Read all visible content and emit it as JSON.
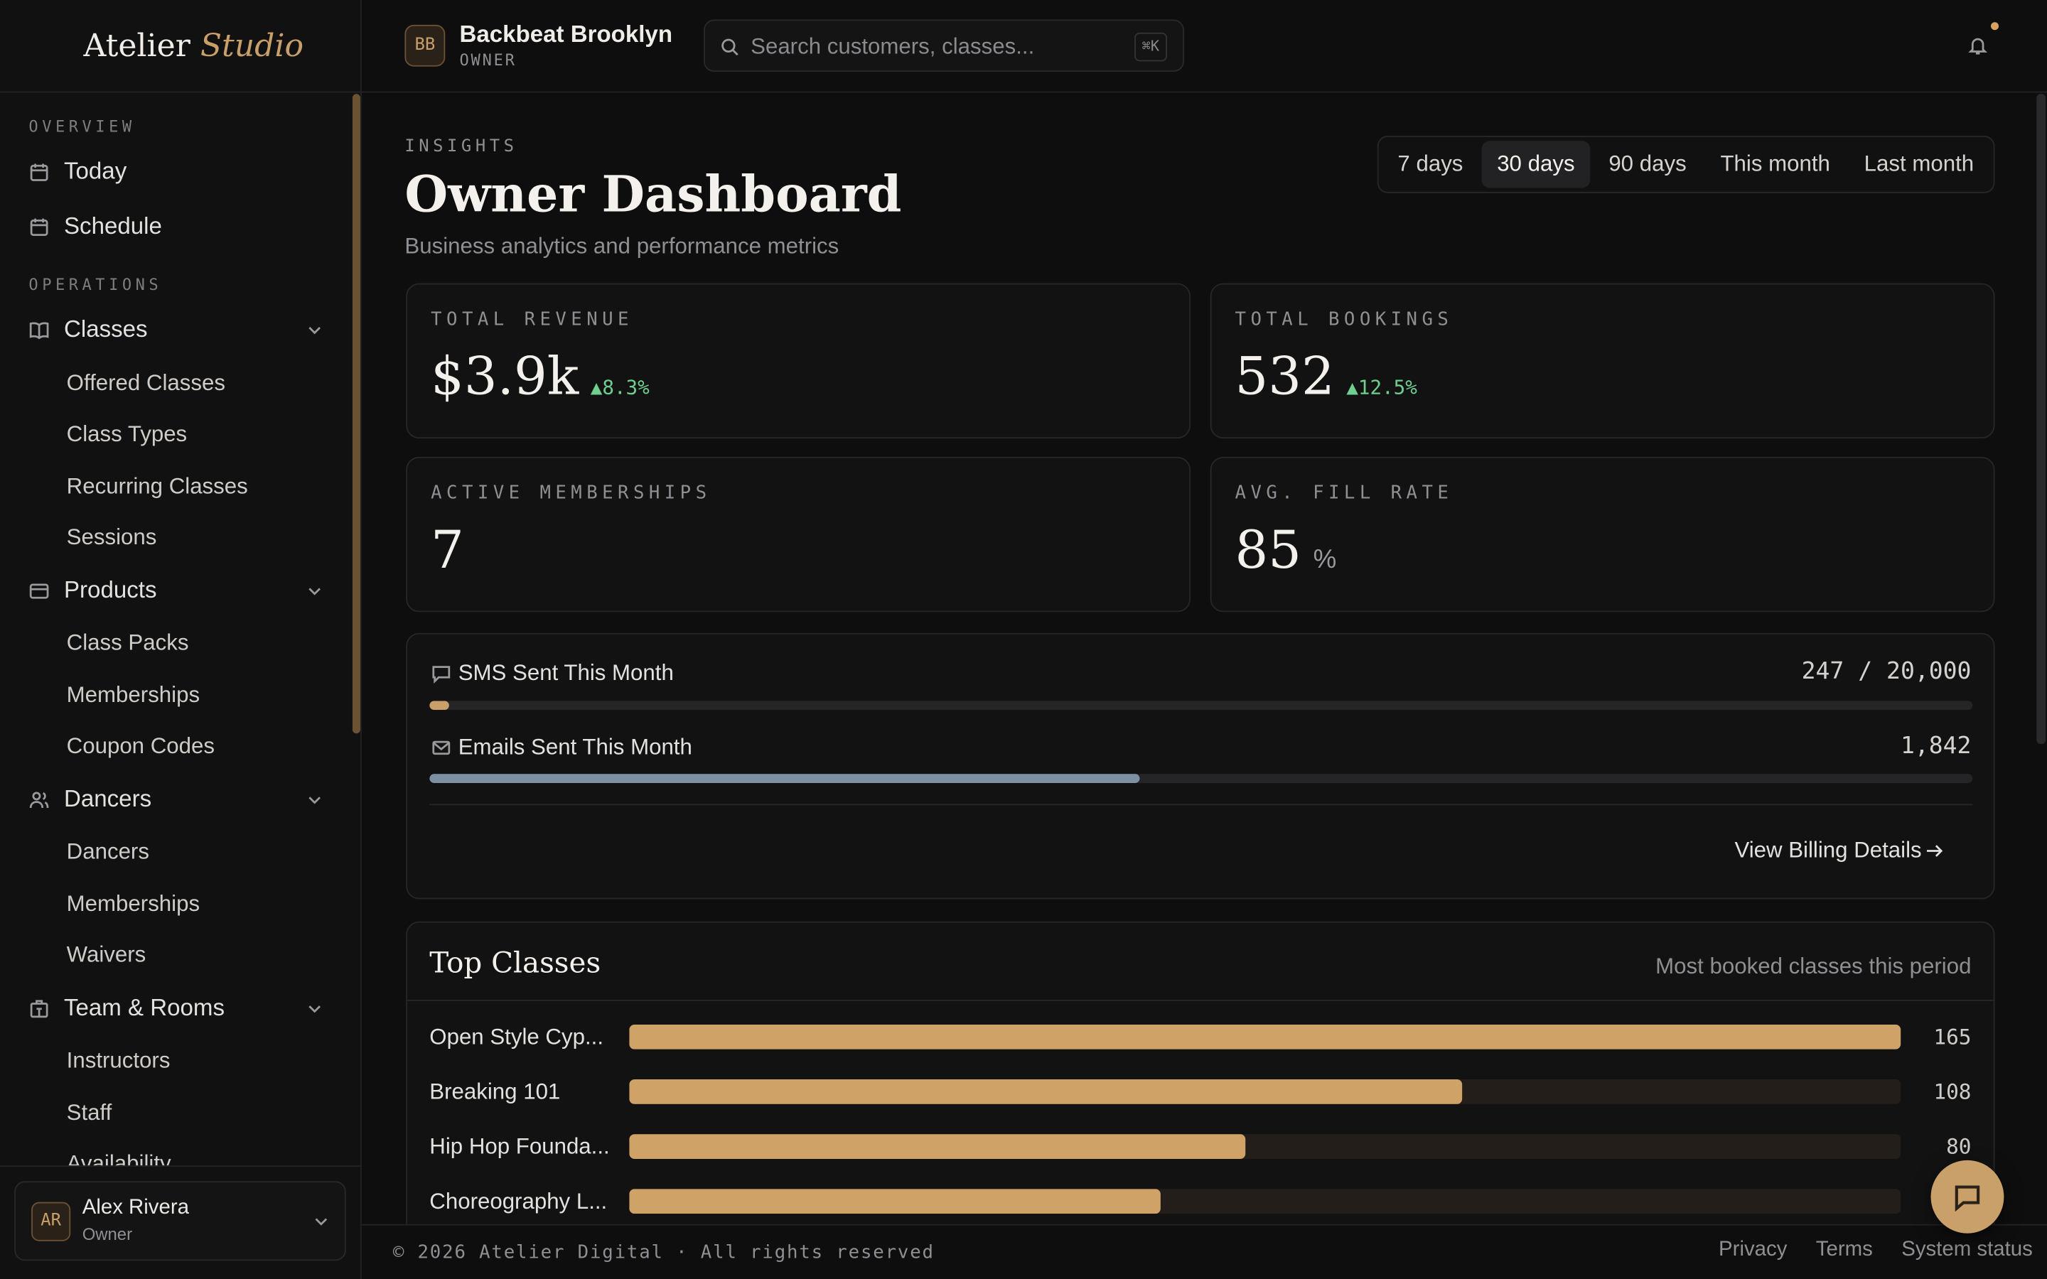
{
  "sidebar": {
    "brand": [
      "Atelier",
      "Studio"
    ],
    "sections": [
      {
        "heading": "OVERVIEW",
        "items": [
          {
            "label": "Today"
          },
          {
            "label": "Schedule"
          }
        ]
      },
      {
        "heading": "OPERATIONS",
        "items": [
          {
            "label": "Classes",
            "children": [
              "Offered Classes",
              "Class Types",
              "Recurring Classes",
              "Sessions"
            ]
          },
          {
            "label": "Products",
            "children": [
              "Class Packs",
              "Memberships",
              "Coupon Codes"
            ]
          },
          {
            "label": "Dancers",
            "children": [
              "Dancers",
              "Memberships",
              "Waivers"
            ]
          },
          {
            "label": "Team & Rooms",
            "children": [
              "Instructors",
              "Staff",
              "Availability"
            ]
          }
        ]
      }
    ],
    "user": {
      "initials": "AR",
      "name": "Alex Rivera",
      "role": "Owner"
    }
  },
  "topbar": {
    "initials": "BB",
    "org": "Backbeat Brooklyn",
    "role": "OWNER",
    "search_placeholder": "Search customers, classes...",
    "shortcut": "⌘K"
  },
  "header": {
    "eyebrow": "INSIGHTS",
    "title": "Owner Dashboard",
    "subtitle": "Business analytics and performance metrics",
    "ranges": [
      "7 days",
      "30 days",
      "90 days",
      "This month",
      "Last month"
    ],
    "selected_range": 1
  },
  "kpis": [
    {
      "label": "TOTAL REVENUE",
      "value": "$3.9k",
      "change": "▲8.3%"
    },
    {
      "label": "TOTAL BOOKINGS",
      "value": "532",
      "change": "▲12.5%"
    },
    {
      "label": "ACTIVE MEMBERSHIPS",
      "value": "7"
    },
    {
      "label": "AVG. FILL RATE",
      "value": "85",
      "unit": "%"
    }
  ],
  "usage": {
    "sms": {
      "label": "SMS Sent This Month",
      "used": 247,
      "limit": 20000,
      "text": "247 / 20,000"
    },
    "emails": {
      "label": "Emails Sent This Month",
      "text": "1,842"
    },
    "link": "View Billing Details"
  },
  "top_classes": {
    "title": "Top Classes",
    "subtitle": "Most booked classes this period",
    "rows": [
      {
        "name": "Open Style Cyp...",
        "bookings": 165
      },
      {
        "name": "Breaking 101",
        "bookings": 108
      },
      {
        "name": "Hip Hop Founda...",
        "bookings": 80
      },
      {
        "name": "Choreography L...",
        "bookings": 69
      }
    ]
  },
  "footer": {
    "copyright": "© 2026 Atelier Digital · All rights reserved",
    "links": [
      "Privacy",
      "Terms",
      "System status"
    ]
  }
}
